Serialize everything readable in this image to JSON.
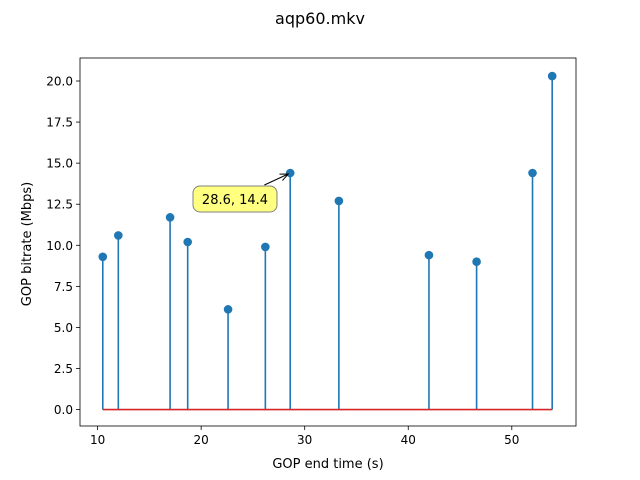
{
  "window": {
    "title": "aqp60.mkv"
  },
  "chart_data": {
    "type": "stem",
    "title": "aqp60.mkv",
    "xlabel": "GOP end time (s)",
    "ylabel": "GOP bitrate (Mbps)",
    "xlim": [
      8.3,
      56.2
    ],
    "ylim": [
      -1.0,
      21.4
    ],
    "xticks": [
      10,
      20,
      30,
      40,
      50
    ],
    "yticks": [
      0.0,
      2.5,
      5.0,
      7.5,
      10.0,
      12.5,
      15.0,
      17.5,
      20.0
    ],
    "xtick_labels": [
      "10",
      "20",
      "30",
      "40",
      "50"
    ],
    "ytick_labels": [
      "0.0",
      "2.5",
      "5.0",
      "7.5",
      "10.0",
      "12.5",
      "15.0",
      "17.5",
      "20.0"
    ],
    "grid": false,
    "baseline": 0,
    "colors": {
      "stem": "#1f77b4",
      "marker": "#1f77b4",
      "baseline": "#d62728"
    },
    "x": [
      10.5,
      12.0,
      17.0,
      18.7,
      22.6,
      26.2,
      28.6,
      33.3,
      42.0,
      46.6,
      52.0,
      53.9
    ],
    "y": [
      9.3,
      10.6,
      11.7,
      10.2,
      6.1,
      9.9,
      14.4,
      12.7,
      9.4,
      9.0,
      14.4,
      20.3
    ],
    "annotation": {
      "text": "28.6, 14.4",
      "x": 28.6,
      "y": 14.4,
      "box_color": "#ffff80",
      "arrow": true
    }
  }
}
